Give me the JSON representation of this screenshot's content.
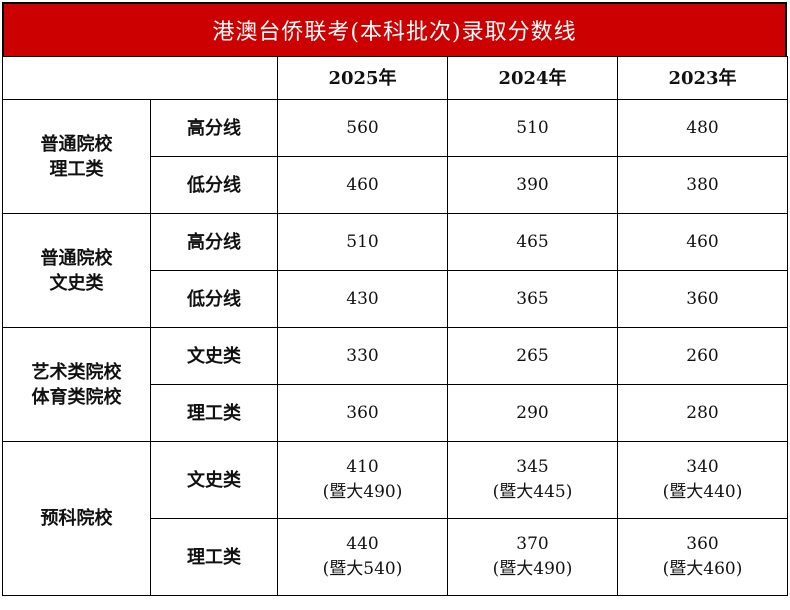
{
  "title": "港澳台侨联考(本科批次)录取分数线",
  "years": [
    "2025年",
    "2024年",
    "2023年"
  ],
  "groups": [
    {
      "name": [
        "普通院校",
        "理工类"
      ],
      "rows": [
        {
          "label": "高分线",
          "values": [
            [
              "560"
            ],
            [
              "510"
            ],
            [
              "480"
            ]
          ]
        },
        {
          "label": "低分线",
          "values": [
            [
              "460"
            ],
            [
              "390"
            ],
            [
              "380"
            ]
          ]
        }
      ]
    },
    {
      "name": [
        "普通院校",
        "文史类"
      ],
      "rows": [
        {
          "label": "高分线",
          "values": [
            [
              "510"
            ],
            [
              "465"
            ],
            [
              "460"
            ]
          ]
        },
        {
          "label": "低分线",
          "values": [
            [
              "430"
            ],
            [
              "365"
            ],
            [
              "360"
            ]
          ]
        }
      ]
    },
    {
      "name": [
        "艺术类院校",
        "体育类院校"
      ],
      "rows": [
        {
          "label": "文史类",
          "values": [
            [
              "330"
            ],
            [
              "265"
            ],
            [
              "260"
            ]
          ]
        },
        {
          "label": "理工类",
          "values": [
            [
              "360"
            ],
            [
              "290"
            ],
            [
              "280"
            ]
          ]
        }
      ]
    },
    {
      "name": [
        "预科院校"
      ],
      "rows": [
        {
          "label": "文史类",
          "values": [
            [
              "410",
              "(暨大490)"
            ],
            [
              "345",
              "(暨大445)"
            ],
            [
              "340",
              "(暨大440)"
            ]
          ]
        },
        {
          "label": "理工类",
          "values": [
            [
              "440",
              "(暨大540)"
            ],
            [
              "370",
              "(暨大490)"
            ],
            [
              "360",
              "(暨大460)"
            ]
          ]
        }
      ]
    }
  ],
  "colors": {
    "title_bg": "#cc0000",
    "title_text": "#ffffff"
  }
}
